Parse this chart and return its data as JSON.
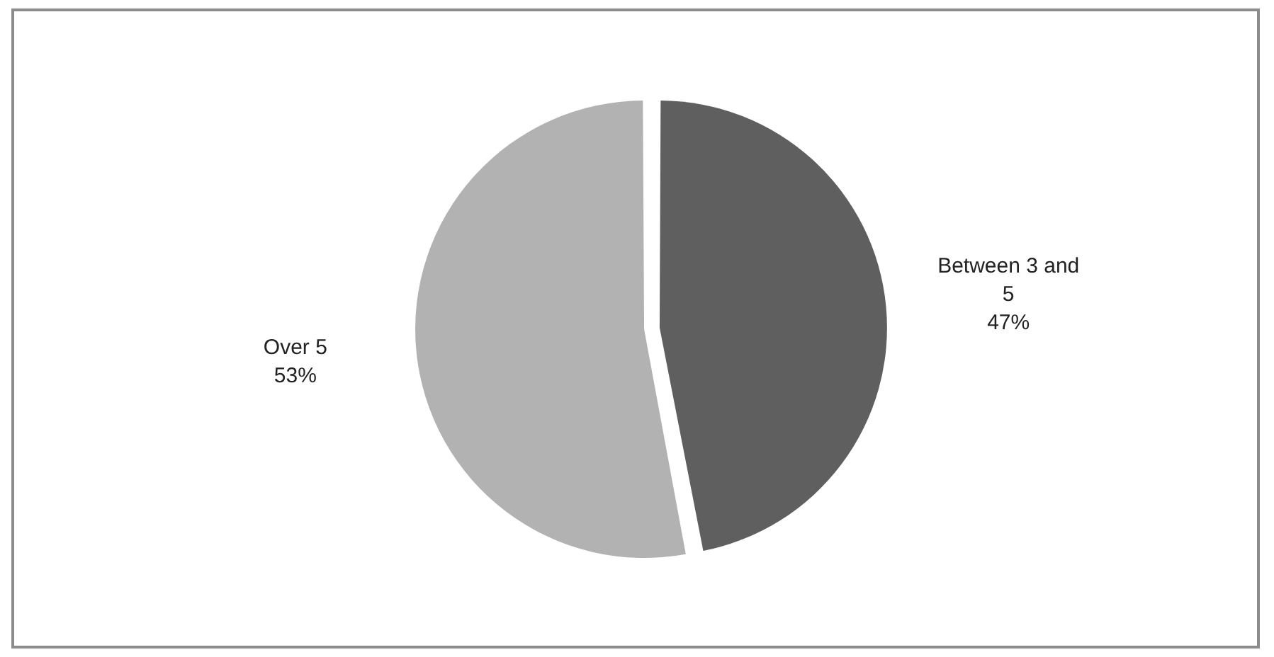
{
  "chart_data": {
    "type": "pie",
    "categories": [
      "Between 3 and 5",
      "Over 5"
    ],
    "values": [
      47,
      53
    ],
    "colors": [
      "#5f5f5f",
      "#b2b2b2"
    ],
    "value_labels": [
      "47%",
      "53%"
    ],
    "legend": false
  }
}
